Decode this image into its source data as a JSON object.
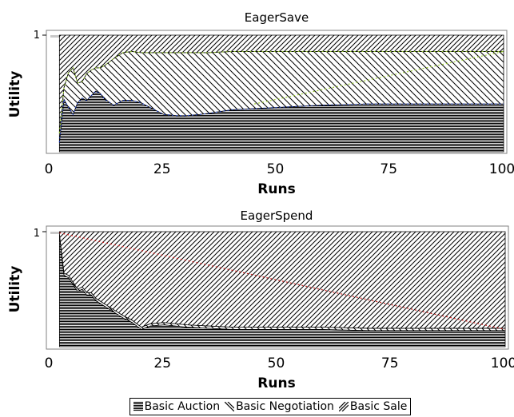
{
  "chart_data": [
    {
      "type": "area",
      "stacking": "100%",
      "title": "EagerSave",
      "xlabel": "Runs",
      "ylabel": "Utility",
      "xlim": [
        0,
        100
      ],
      "ylim": [
        0,
        1
      ],
      "xticks": [
        "0",
        "25",
        "50",
        "75",
        "100"
      ],
      "yticks": [
        "1"
      ],
      "x": [
        2,
        3,
        4,
        5,
        6,
        7,
        8,
        9,
        10,
        11,
        12,
        14,
        16,
        18,
        20,
        22,
        25,
        28,
        30,
        33,
        35,
        40,
        45,
        50,
        55,
        60,
        70,
        80,
        90,
        100
      ],
      "series": [
        {
          "name": "Basic Auction",
          "values": [
            0.08,
            0.45,
            0.38,
            0.32,
            0.42,
            0.46,
            0.44,
            0.48,
            0.52,
            0.5,
            0.45,
            0.4,
            0.44,
            0.44,
            0.42,
            0.38,
            0.32,
            0.31,
            0.31,
            0.32,
            0.33,
            0.36,
            0.37,
            0.38,
            0.39,
            0.4,
            0.41,
            0.41,
            0.41,
            0.41
          ]
        },
        {
          "name": "Basic Negotiation",
          "values": [
            0.08,
            0.1,
            0.3,
            0.4,
            0.17,
            0.14,
            0.23,
            0.22,
            0.2,
            0.22,
            0.29,
            0.4,
            0.41,
            0.42,
            0.43,
            0.47,
            0.53,
            0.54,
            0.54,
            0.53,
            0.52,
            0.5,
            0.49,
            0.48,
            0.47,
            0.46,
            0.45,
            0.45,
            0.45,
            0.45
          ]
        },
        {
          "name": "Basic Sale",
          "values": [
            0.84,
            0.45,
            0.32,
            0.28,
            0.41,
            0.4,
            0.33,
            0.3,
            0.28,
            0.28,
            0.26,
            0.2,
            0.15,
            0.14,
            0.15,
            0.15,
            0.15,
            0.15,
            0.15,
            0.15,
            0.15,
            0.14,
            0.14,
            0.14,
            0.14,
            0.14,
            0.14,
            0.14,
            0.14,
            0.14
          ]
        }
      ],
      "legend": "bottom"
    },
    {
      "type": "area",
      "stacking": "100%",
      "title": "EagerSpend",
      "xlabel": "Runs",
      "ylabel": "Utility",
      "xlim": [
        0,
        100
      ],
      "ylim": [
        0,
        1
      ],
      "xticks": [
        "0",
        "25",
        "50",
        "75",
        "100"
      ],
      "yticks": [
        "1"
      ],
      "x": [
        2,
        3,
        4,
        5,
        6,
        7,
        8,
        9,
        10,
        12,
        14,
        16,
        18,
        20,
        22,
        25,
        30,
        40,
        50,
        60,
        70,
        80,
        90,
        100
      ],
      "series": [
        {
          "name": "Basic Auction",
          "values": [
            0.97,
            0.62,
            0.6,
            0.54,
            0.48,
            0.5,
            0.45,
            0.45,
            0.4,
            0.35,
            0.3,
            0.25,
            0.21,
            0.15,
            0.18,
            0.19,
            0.17,
            0.15,
            0.15,
            0.15,
            0.14,
            0.14,
            0.14,
            0.14
          ]
        },
        {
          "name": "Basic Negotiation",
          "values": [
            0.01,
            0.02,
            0.02,
            0.02,
            0.02,
            0.02,
            0.02,
            0.02,
            0.02,
            0.02,
            0.02,
            0.02,
            0.02,
            0.02,
            0.02,
            0.02,
            0.02,
            0.02,
            0.02,
            0.02,
            0.02,
            0.02,
            0.02,
            0.02
          ]
        },
        {
          "name": "Basic Sale",
          "values": [
            0.02,
            0.36,
            0.38,
            0.44,
            0.5,
            0.48,
            0.53,
            0.53,
            0.58,
            0.63,
            0.68,
            0.73,
            0.77,
            0.83,
            0.8,
            0.79,
            0.81,
            0.83,
            0.83,
            0.83,
            0.84,
            0.84,
            0.84,
            0.84
          ]
        }
      ],
      "legend": "bottom"
    }
  ],
  "legend": {
    "entries": [
      "Basic Auction",
      "Basic Negotiation",
      "Basic Sale"
    ]
  },
  "colors": {
    "ink": "#000000",
    "frame": "#808080",
    "grid": "#d9d9d9",
    "top_band": "#c8c8c8",
    "trace_green": "#9acd32",
    "trace_blue": "#1f3fbf",
    "trace_red": "#d02020"
  }
}
